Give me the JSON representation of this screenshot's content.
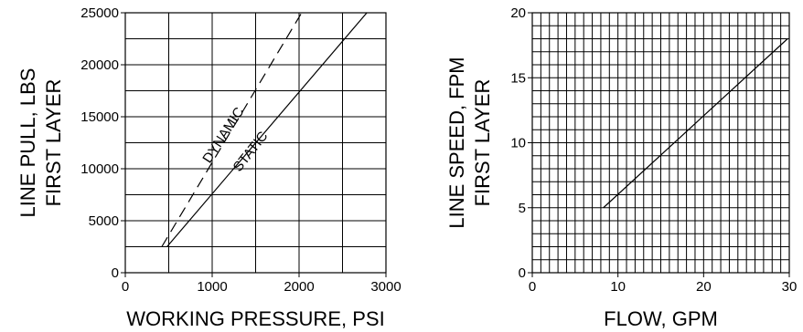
{
  "chart_data": [
    {
      "type": "line",
      "title": "",
      "xlabel": "WORKING PRESSURE, PSI",
      "ylabel_lines": [
        "LINE PULL, LBS",
        "FIRST LAYER"
      ],
      "xlim": [
        0,
        3000
      ],
      "ylim": [
        0,
        25000
      ],
      "x_ticks": [
        0,
        1000,
        2000,
        3000
      ],
      "y_ticks": [
        0,
        5000,
        10000,
        15000,
        20000,
        25000
      ],
      "x_grid_step": 500,
      "y_grid_step": 2500,
      "grid": true,
      "series": [
        {
          "name": "DYNAMIC",
          "style": "dashed",
          "x": [
            420,
            2030
          ],
          "y": [
            2500,
            25000
          ]
        },
        {
          "name": "STATIC",
          "style": "solid",
          "x": [
            480,
            2780
          ],
          "y": [
            2500,
            25000
          ]
        }
      ],
      "annotations": [
        {
          "text": "DYNAMIC",
          "x": 1170,
          "y": 13000,
          "angle": -57
        },
        {
          "text": "STATIC",
          "x": 1480,
          "y": 11400,
          "angle": -52
        }
      ]
    },
    {
      "type": "line",
      "title": "",
      "xlabel": "FLOW, GPM",
      "ylabel_lines": [
        "LINE SPEED, FPM",
        "FIRST LAYER"
      ],
      "xlim": [
        0,
        30
      ],
      "ylim": [
        0,
        20
      ],
      "x_ticks": [
        0,
        10,
        20,
        30
      ],
      "y_ticks": [
        0,
        5,
        10,
        15,
        20
      ],
      "x_grid_step": 1,
      "y_grid_step": 1,
      "grid": true,
      "series": [
        {
          "name": "",
          "style": "solid",
          "x": [
            8.3,
            29.8
          ],
          "y": [
            5,
            18
          ]
        }
      ],
      "annotations": []
    }
  ]
}
